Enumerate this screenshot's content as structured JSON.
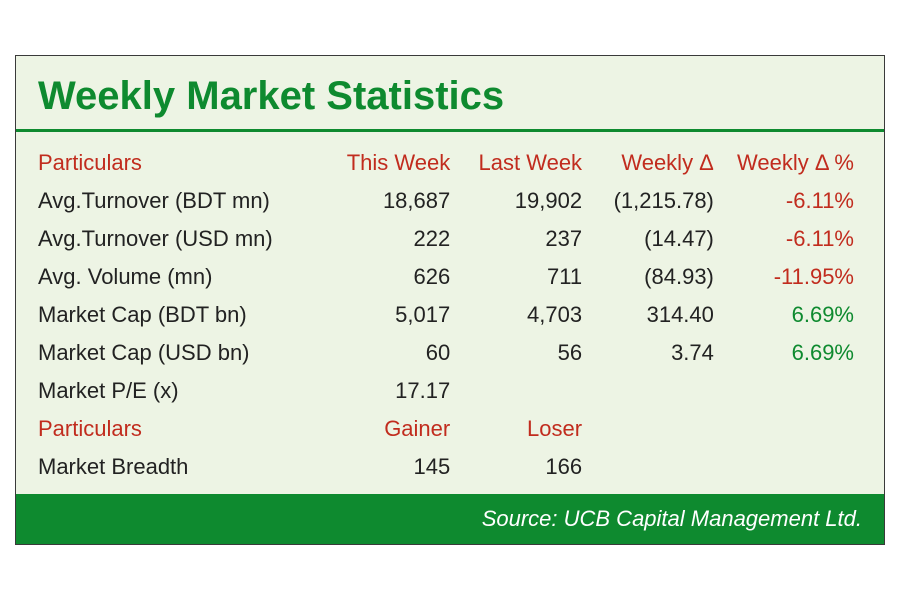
{
  "title": "Weekly Market Statistics",
  "headers": {
    "particulars": "Particulars",
    "this_week": "This Week",
    "last_week": "Last Week",
    "weekly_delta": "Weekly Δ",
    "weekly_delta_pct": "Weekly Δ %"
  },
  "rows": [
    {
      "label": "Avg.Turnover (BDT mn)",
      "this_week": "18,687",
      "last_week": "19,902",
      "delta": "(1,215.78)",
      "pct": "-6.11%",
      "pct_class": "neg"
    },
    {
      "label": "Avg.Turnover (USD mn)",
      "this_week": "222",
      "last_week": "237",
      "delta": "(14.47)",
      "pct": "-6.11%",
      "pct_class": "neg"
    },
    {
      "label": "Avg. Volume (mn)",
      "this_week": "626",
      "last_week": "711",
      "delta": "(84.93)",
      "pct": "-11.95%",
      "pct_class": "neg"
    },
    {
      "label": "Market Cap (BDT bn)",
      "this_week": "5,017",
      "last_week": "4,703",
      "delta": "314.40",
      "pct": "6.69%",
      "pct_class": "pos"
    },
    {
      "label": "Market Cap (USD bn)",
      "this_week": "60",
      "last_week": "56",
      "delta": "3.74",
      "pct": "6.69%",
      "pct_class": "pos"
    },
    {
      "label": "Market P/E (x)",
      "this_week": "17.17",
      "last_week": "",
      "delta": "",
      "pct": "",
      "pct_class": ""
    }
  ],
  "section2": {
    "headers": {
      "particulars": "Particulars",
      "gainer": "Gainer",
      "loser": "Loser"
    },
    "row": {
      "label": "Market Breadth",
      "gainer": "145",
      "loser": "166"
    }
  },
  "source": "Source: UCB Capital Management Ltd.",
  "colors": {
    "background": "#edf4e4",
    "accent_green": "#0e8a2f",
    "accent_red": "#c12c1e",
    "text": "#222222",
    "footer_text": "#ffffff",
    "border": "#3a3a3a"
  },
  "fonts": {
    "title_size": 40,
    "body_size": 22,
    "footer_size": 22
  }
}
